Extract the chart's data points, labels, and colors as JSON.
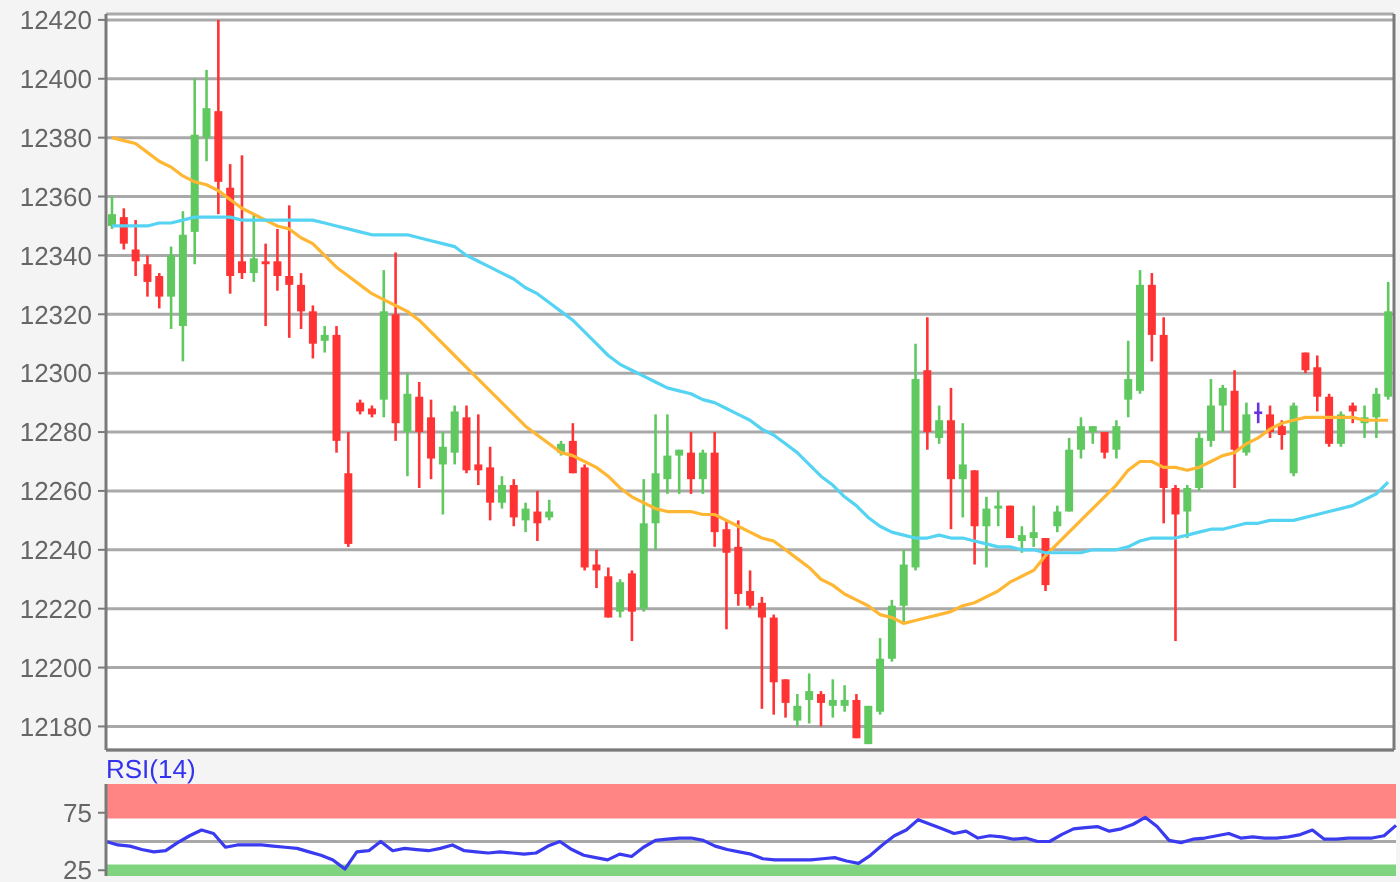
{
  "chart_data": [
    {
      "type": "candlestick",
      "categories": [
        null,
        null,
        null,
        null,
        null,
        null,
        null,
        null,
        null,
        null,
        null,
        null,
        null,
        null,
        null,
        null,
        null,
        null,
        null,
        null,
        null,
        null,
        null,
        null,
        null,
        null,
        null,
        null,
        null,
        null,
        null,
        null,
        null,
        null,
        null,
        null,
        null,
        null,
        null,
        null,
        null,
        null,
        null,
        null,
        null,
        null,
        null,
        null,
        null,
        null,
        null,
        null,
        null,
        null,
        null,
        null,
        null,
        null,
        null,
        null,
        null,
        null,
        null,
        null,
        null,
        null,
        null,
        null,
        null,
        null,
        null,
        null,
        null,
        null,
        null,
        null,
        null,
        null,
        null,
        null,
        null,
        null,
        null,
        null,
        null,
        null,
        null,
        null,
        null,
        null,
        null,
        null,
        null,
        null,
        null,
        null,
        null,
        null,
        null,
        null,
        null,
        null,
        null,
        null,
        null,
        null,
        null,
        null,
        null
      ],
      "series": [
        {
          "type": "candlestick",
          "ohlc": [
            [
              12350,
              12360,
              12349,
              12354
            ],
            [
              12353,
              12356,
              12342,
              12344
            ],
            [
              12342,
              12352,
              12333,
              12338
            ],
            [
              12337,
              12340,
              12326,
              12331
            ],
            [
              12333,
              12334,
              12322,
              12326
            ],
            [
              12326,
              12343,
              12315,
              12340
            ],
            [
              12316,
              12355,
              12304,
              12347
            ],
            [
              12348,
              12400,
              12337,
              12381
            ],
            [
              12380,
              12403,
              12372,
              12390
            ],
            [
              12389,
              12420,
              12354,
              12365
            ],
            [
              12363,
              12371,
              12327,
              12333
            ],
            [
              12338,
              12374,
              12332,
              12334
            ],
            [
              12334,
              12354,
              12331,
              12339
            ],
            [
              12338,
              12344,
              12316,
              12337
            ],
            [
              12338,
              12349,
              12328,
              12333
            ],
            [
              12333,
              12357,
              12312,
              12330
            ],
            [
              12330,
              12334,
              12315,
              12321
            ],
            [
              12321,
              12323,
              12305,
              12310
            ],
            [
              12311,
              12316,
              12307,
              12313
            ],
            [
              12313,
              12316,
              12273,
              12277
            ],
            [
              12266,
              12280,
              12241,
              12242
            ],
            [
              12290,
              12291,
              12286,
              12287
            ],
            [
              12288,
              12289,
              12285,
              12286
            ],
            [
              12291,
              12335,
              12285,
              12321
            ],
            [
              12320,
              12341,
              12277,
              12283
            ],
            [
              12280,
              12300,
              12265,
              12293
            ],
            [
              12292,
              12297,
              12261,
              12280
            ],
            [
              12285,
              12291,
              12264,
              12271
            ],
            [
              12269,
              12280,
              12252,
              12275
            ],
            [
              12273,
              12289,
              12269,
              12287
            ],
            [
              12285,
              12289,
              12266,
              12267
            ],
            [
              12269,
              12286,
              12262,
              12267
            ],
            [
              12268,
              12275,
              12250,
              12256
            ],
            [
              12256,
              12265,
              12254,
              12262
            ],
            [
              12262,
              12264,
              12248,
              12251
            ],
            [
              12250,
              12256,
              12246,
              12254
            ],
            [
              12253,
              12260,
              12243,
              12249
            ],
            [
              12251,
              12257,
              12250,
              12253
            ],
            [
              12273,
              12277,
              12272,
              12276
            ],
            [
              12277,
              12283,
              12266,
              12266
            ],
            [
              12268,
              12269,
              12233,
              12234
            ],
            [
              12235,
              12240,
              12227,
              12233
            ],
            [
              12231,
              12234,
              12217,
              12217
            ],
            [
              12219,
              12230,
              12217,
              12229
            ],
            [
              12232,
              12233,
              12209,
              12219
            ],
            [
              12220,
              12264,
              12219,
              12249
            ],
            [
              12249,
              12286,
              12240,
              12266
            ],
            [
              12264,
              12286,
              12259,
              12272
            ],
            [
              12272,
              12274,
              12259,
              12274
            ],
            [
              12273,
              12280,
              12259,
              12264
            ],
            [
              12264,
              12274,
              12259,
              12273
            ],
            [
              12273,
              12280,
              12241,
              12246
            ],
            [
              12247,
              12250,
              12213,
              12239
            ],
            [
              12241,
              12250,
              12221,
              12225
            ],
            [
              12226,
              12233,
              12220,
              12221
            ],
            [
              12222,
              12224,
              12186,
              12217
            ],
            [
              12217,
              12218,
              12184,
              12195
            ],
            [
              12196,
              12196,
              12183,
              12188
            ],
            [
              12182,
              12191,
              12180,
              12187
            ],
            [
              12189,
              12198,
              12181,
              12192
            ],
            [
              12191,
              12192,
              12180,
              12188
            ],
            [
              12187,
              12196,
              12183,
              12189
            ],
            [
              12187,
              12194,
              12185,
              12189
            ],
            [
              12189,
              12191,
              12176,
              12176
            ],
            [
              12174,
              12187,
              12174,
              12187
            ],
            [
              12185,
              12210,
              12184,
              12203
            ],
            [
              12203,
              12223,
              12202,
              12221
            ],
            [
              12221,
              12240,
              12215,
              12235
            ],
            [
              12234,
              12310,
              12233,
              12298
            ],
            [
              12301,
              12319,
              12274,
              12280
            ],
            [
              12278,
              12289,
              12276,
              12284
            ],
            [
              12284,
              12295,
              12247,
              12264
            ],
            [
              12264,
              12283,
              12251,
              12269
            ],
            [
              12267,
              12267,
              12235,
              12248
            ],
            [
              12248,
              12258,
              12234,
              12254
            ],
            [
              12254,
              12260,
              12248,
              12255
            ],
            [
              12255,
              12255,
              12244,
              12244
            ],
            [
              12243,
              12248,
              12239,
              12245
            ],
            [
              12244,
              12255,
              12241,
              12246
            ],
            [
              12244,
              12244,
              12226,
              12228
            ],
            [
              12248,
              12255,
              12246,
              12253
            ],
            [
              12253,
              12278,
              12253,
              12274
            ],
            [
              12274,
              12285,
              12271,
              12282
            ],
            [
              12280,
              12282,
              12276,
              12282
            ],
            [
              12280,
              12280,
              12271,
              12273
            ],
            [
              12274,
              12284,
              12271,
              12282
            ],
            [
              12291,
              12311,
              12285,
              12298
            ],
            [
              12294,
              12335,
              12293,
              12330
            ],
            [
              12330,
              12334,
              12304,
              12313
            ],
            [
              12313,
              12319,
              12249,
              12261
            ],
            [
              12261,
              12262,
              12209,
              12252
            ],
            [
              12253,
              12262,
              12244,
              12261
            ],
            [
              12261,
              12280,
              12260,
              12278
            ],
            [
              12277,
              12298,
              12275,
              12289
            ],
            [
              12289,
              12296,
              12280,
              12295
            ],
            [
              12294,
              12301,
              12261,
              12274
            ],
            [
              12273,
              12290,
              12272,
              12286
            ],
            [
              12287,
              12290,
              12283,
              12287
            ],
            [
              12286,
              12289,
              12278,
              12280
            ],
            [
              12282,
              12284,
              12274,
              12279
            ],
            [
              12266,
              12290,
              12265,
              12289
            ],
            [
              12307,
              12307,
              12300,
              12301
            ],
            [
              12302,
              12306,
              12287,
              12292
            ],
            [
              12292,
              12293,
              12275,
              12276
            ],
            [
              12276,
              12287,
              12275,
              12286
            ],
            [
              12289,
              12290,
              12283,
              12287
            ],
            [
              12283,
              12289,
              12278,
              12285
            ],
            [
              12285,
              12295,
              12278,
              12293
            ],
            [
              12292,
              12331,
              12291,
              12321
            ]
          ],
          "colors": [
            "#5fc85f",
            "#ff3333",
            "#ff3333",
            "#ff3333",
            "#ff3333",
            "#5fc85f",
            "#5fc85f",
            "#5fc85f",
            "#5fc85f",
            "#ff3333",
            "#ff3333",
            "#ff3333",
            "#5fc85f",
            "#ff3333",
            "#ff3333",
            "#ff3333",
            "#ff3333",
            "#ff3333",
            "#5fc85f",
            "#ff3333",
            "#ff3333",
            "#ff3333",
            "#ff3333",
            "#5fc85f",
            "#ff3333",
            "#5fc85f",
            "#ff3333",
            "#ff3333",
            "#5fc85f",
            "#5fc85f",
            "#ff3333",
            "#ff3333",
            "#ff3333",
            "#5fc85f",
            "#ff3333",
            "#5fc85f",
            "#ff3333",
            "#5fc85f",
            "#5fc85f",
            "#ff3333",
            "#ff3333",
            "#ff3333",
            "#ff3333",
            "#5fc85f",
            "#ff3333",
            "#5fc85f",
            "#5fc85f",
            "#5fc85f",
            "#5fc85f",
            "#ff3333",
            "#5fc85f",
            "#ff3333",
            "#ff3333",
            "#ff3333",
            "#ff3333",
            "#ff3333",
            "#ff3333",
            "#ff3333",
            "#5fc85f",
            "#5fc85f",
            "#ff3333",
            "#5fc85f",
            "#5fc85f",
            "#ff3333",
            "#5fc85f",
            "#5fc85f",
            "#5fc85f",
            "#5fc85f",
            "#5fc85f",
            "#ff3333",
            "#5fc85f",
            "#ff3333",
            "#5fc85f",
            "#ff3333",
            "#5fc85f",
            "#5fc85f",
            "#ff3333",
            "#5fc85f",
            "#5fc85f",
            "#ff3333",
            "#5fc85f",
            "#5fc85f",
            "#5fc85f",
            "#5fc85f",
            "#ff3333",
            "#5fc85f",
            "#5fc85f",
            "#5fc85f",
            "#ff3333",
            "#ff3333",
            "#ff3333",
            "#5fc85f",
            "#5fc85f",
            "#5fc85f",
            "#5fc85f",
            "#ff3333",
            "#5fc85f",
            "#6633dd",
            "#ff3333",
            "#ff3333",
            "#5fc85f",
            "#ff3333",
            "#ff3333",
            "#ff3333",
            "#5fc85f",
            "#ff3333",
            "#5fc85f",
            "#5fc85f",
            "#5fc85f"
          ]
        },
        {
          "type": "line",
          "color": "#ffb733",
          "values": [
            12380,
            12379,
            12378,
            12375,
            12372,
            12370,
            12367,
            12365,
            12364,
            12362,
            12359,
            12356,
            12354,
            12352,
            12350,
            12349,
            12346,
            12344,
            12340,
            12336,
            12333,
            12330,
            12327,
            12325,
            12323,
            12321,
            12318,
            12314,
            12310,
            12306,
            12302,
            12298,
            12294,
            12290,
            12286,
            12282,
            12279,
            12276,
            12273,
            12272,
            12270,
            12268,
            12265,
            12261,
            12258,
            12256,
            12254,
            12253,
            12253,
            12253,
            12252,
            12252,
            12250,
            12248,
            12246,
            12244,
            12243,
            12240,
            12237,
            12234,
            12230,
            12228,
            12225,
            12223,
            12221,
            12218,
            12217,
            12215,
            12216,
            12217,
            12218,
            12219,
            12221,
            12222,
            12224,
            12226,
            12229,
            12231,
            12233,
            12238,
            12242,
            12246,
            12250,
            12254,
            12258,
            12262,
            12267,
            12270,
            12270,
            12268,
            12268,
            12267,
            12268,
            12270,
            12272,
            12273,
            12276,
            12278,
            12281,
            12283,
            12284,
            12285,
            12285,
            12285,
            12285,
            12285,
            12284,
            12284,
            12284
          ]
        },
        {
          "type": "line",
          "color": "#55d3f2",
          "values": [
            12350,
            12350,
            12350,
            12350,
            12351,
            12351,
            12352,
            12353,
            12353,
            12353,
            12353,
            12352,
            12352,
            12352,
            12352,
            12352,
            12352,
            12352,
            12351,
            12350,
            12349,
            12348,
            12347,
            12347,
            12347,
            12347,
            12346,
            12345,
            12344,
            12343,
            12340,
            12338,
            12336,
            12334,
            12332,
            12329,
            12327,
            12324,
            12321,
            12318,
            12314,
            12310,
            12306,
            12303,
            12301,
            12299,
            12297,
            12295,
            12294,
            12293,
            12291,
            12290,
            12288,
            12286,
            12284,
            12281,
            12279,
            12276,
            12273,
            12269,
            12265,
            12262,
            12258,
            12255,
            12251,
            12248,
            12246,
            12245,
            12244,
            12244,
            12245,
            12244,
            12244,
            12243,
            12242,
            12241,
            12241,
            12240,
            12240,
            12239,
            12239,
            12239,
            12239,
            12240,
            12240,
            12240,
            12241,
            12243,
            12244,
            12244,
            12244,
            12245,
            12246,
            12247,
            12247,
            12248,
            12249,
            12249,
            12250,
            12250,
            12250,
            12251,
            12252,
            12253,
            12254,
            12255,
            12257,
            12259,
            12263
          ]
        }
      ],
      "ylim": [
        12172,
        12422
      ],
      "yticks": [
        12180,
        12200,
        12220,
        12240,
        12260,
        12280,
        12300,
        12320,
        12340,
        12360,
        12380,
        12400,
        12420
      ],
      "grid": "y"
    },
    {
      "type": "line",
      "title": "RSI(14)",
      "categories": [
        null,
        null,
        null,
        null,
        null,
        null,
        null,
        null,
        null,
        null,
        null,
        null,
        null,
        null,
        null,
        null,
        null,
        null,
        null,
        null,
        null,
        null,
        null,
        null,
        null,
        null,
        null,
        null,
        null,
        null,
        null,
        null,
        null,
        null,
        null,
        null,
        null,
        null,
        null,
        null,
        null,
        null,
        null,
        null,
        null,
        null,
        null,
        null,
        null,
        null,
        null,
        null,
        null,
        null,
        null,
        null,
        null,
        null,
        null,
        null,
        null,
        null,
        null,
        null,
        null,
        null,
        null,
        null,
        null,
        null,
        null,
        null,
        null,
        null,
        null,
        null,
        null,
        null,
        null,
        null,
        null,
        null,
        null,
        null,
        null,
        null,
        null,
        null,
        null,
        null,
        null,
        null,
        null,
        null,
        null,
        null,
        null,
        null,
        null,
        null,
        null,
        null,
        null,
        null,
        null,
        null,
        null,
        null,
        null
      ],
      "series": [
        {
          "color": "#3a3af0",
          "values": [
            50,
            47,
            46,
            43,
            41,
            42,
            49,
            55,
            60,
            57,
            45,
            47,
            47,
            47,
            46,
            45,
            44,
            41,
            38,
            34,
            26,
            41,
            42,
            50,
            42,
            44,
            43,
            42,
            44,
            47,
            42,
            41,
            40,
            41,
            40,
            39,
            40,
            46,
            50,
            43,
            38,
            36,
            34,
            39,
            37,
            45,
            51,
            52,
            53,
            53,
            51,
            46,
            43,
            41,
            39,
            35,
            34,
            34,
            34,
            34,
            35,
            36,
            33,
            31,
            38,
            47,
            55,
            60,
            69,
            65,
            61,
            57,
            59,
            53,
            55,
            54,
            52,
            53,
            50,
            50,
            56,
            61,
            62,
            63,
            59,
            61,
            65,
            71,
            63,
            51,
            49,
            52,
            53,
            55,
            57,
            53,
            54,
            53,
            53,
            54,
            56,
            60,
            52,
            52,
            53,
            53,
            53,
            55,
            64
          ]
        }
      ],
      "ylim": [
        20,
        100
      ],
      "yticks": [
        25,
        75
      ],
      "ref_lines": [
        {
          "axis": "y",
          "value": 50,
          "color": "#a8a8a8"
        }
      ],
      "bands": [
        {
          "axis": "y",
          "from": 70,
          "to": 100,
          "color": "#ff8585"
        },
        {
          "axis": "y",
          "from": 20,
          "to": 30,
          "color": "#80d480"
        }
      ]
    }
  ]
}
